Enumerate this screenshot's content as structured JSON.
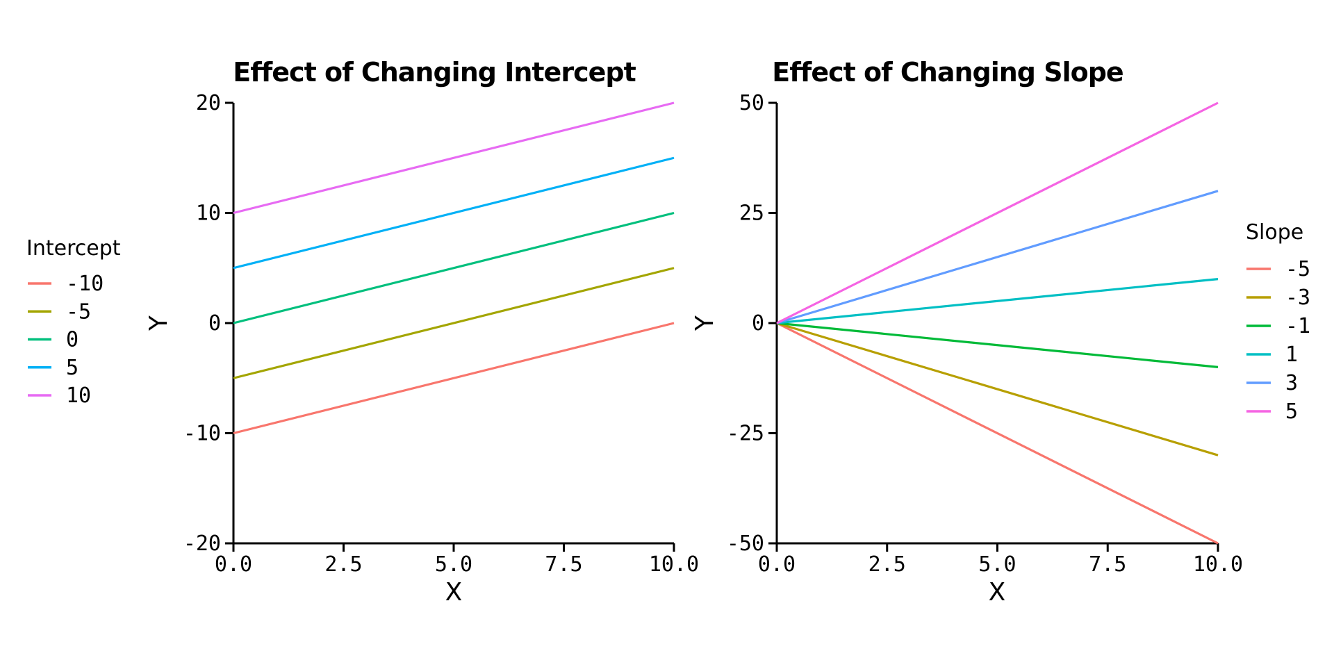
{
  "figure": {
    "background": "#ffffff",
    "text_color": "#000000",
    "axis_color": "#000000"
  },
  "chart_data": [
    {
      "type": "line",
      "title": "Effect of Changing Intercept",
      "xlabel": "X",
      "ylabel": "Y",
      "xlim": [
        0,
        10
      ],
      "ylim": [
        -20,
        20
      ],
      "grid": false,
      "xticks": {
        "values": [
          0,
          2.5,
          5,
          7.5,
          10
        ],
        "labels": [
          "0.0",
          "2.5",
          "5.0",
          "7.5",
          "10.0"
        ]
      },
      "yticks": {
        "values": [
          -20,
          -10,
          0,
          10,
          20
        ],
        "labels": [
          "-20",
          "-10",
          "0",
          "10",
          "20"
        ]
      },
      "legend": {
        "title": "Intercept",
        "position": "left-outside"
      },
      "x": [
        0,
        10
      ],
      "series": [
        {
          "name": "-10",
          "color": "#F8766D",
          "y": [
            -10,
            0
          ]
        },
        {
          "name": "-5",
          "color": "#A3A500",
          "y": [
            -5,
            5
          ]
        },
        {
          "name": "0",
          "color": "#00BF7D",
          "y": [
            0,
            10
          ]
        },
        {
          "name": "5",
          "color": "#00B0F6",
          "y": [
            5,
            15
          ]
        },
        {
          "name": "10",
          "color": "#E76BF3",
          "y": [
            10,
            20
          ]
        }
      ]
    },
    {
      "type": "line",
      "title": "Effect of Changing Slope",
      "xlabel": "X",
      "ylabel": "Y",
      "xlim": [
        0,
        10
      ],
      "ylim": [
        -50,
        50
      ],
      "grid": false,
      "xticks": {
        "values": [
          0,
          2.5,
          5,
          7.5,
          10
        ],
        "labels": [
          "0.0",
          "2.5",
          "5.0",
          "7.5",
          "10.0"
        ]
      },
      "yticks": {
        "values": [
          -50,
          -25,
          0,
          25,
          50
        ],
        "labels": [
          "-50",
          "-25",
          "0",
          "25",
          "50"
        ]
      },
      "legend": {
        "title": "Slope",
        "position": "right-outside"
      },
      "x": [
        0,
        10
      ],
      "series": [
        {
          "name": "-5",
          "color": "#F8766D",
          "y": [
            0,
            -50
          ]
        },
        {
          "name": "-3",
          "color": "#B79F00",
          "y": [
            0,
            -30
          ]
        },
        {
          "name": "-1",
          "color": "#00BA38",
          "y": [
            0,
            -10
          ]
        },
        {
          "name": "1",
          "color": "#00BFC4",
          "y": [
            0,
            10
          ]
        },
        {
          "name": "3",
          "color": "#619CFF",
          "y": [
            0,
            30
          ]
        },
        {
          "name": "5",
          "color": "#F564E3",
          "y": [
            0,
            50
          ]
        }
      ]
    }
  ]
}
